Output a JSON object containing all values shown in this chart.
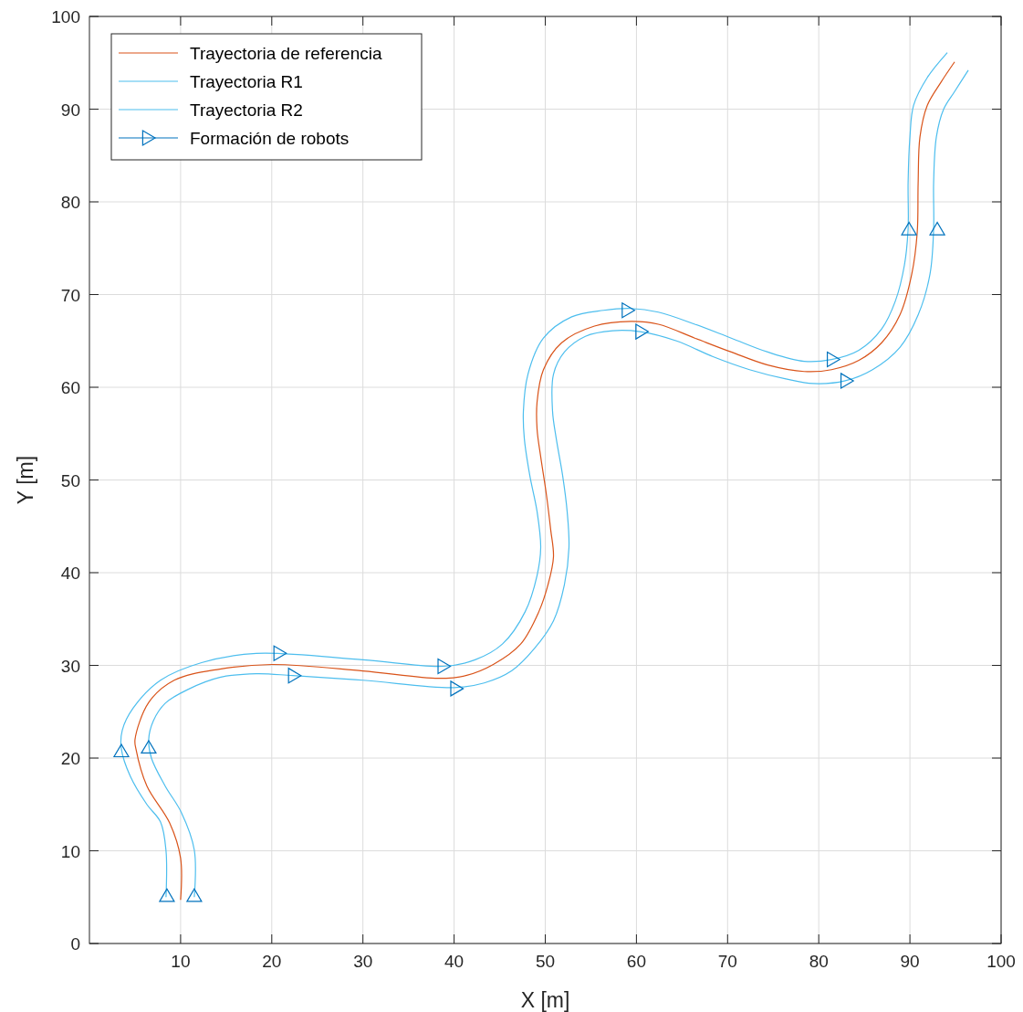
{
  "chart_data": {
    "type": "line",
    "xlabel": "X [m]",
    "ylabel": "Y [m]",
    "xlim": [
      0,
      100
    ],
    "ylim": [
      0,
      100
    ],
    "xticks": [
      10,
      20,
      30,
      40,
      50,
      60,
      70,
      80,
      90,
      100
    ],
    "yticks": [
      0,
      10,
      20,
      30,
      40,
      50,
      60,
      70,
      80,
      90,
      100
    ],
    "grid": true,
    "legend": "top left",
    "series": [
      {
        "name": "Trayectoria de referencia",
        "color": "#d95319",
        "x": [
          10,
          10,
          8.8,
          6.3,
          5.1,
          5,
          6.5,
          9.3,
          14.3,
          20,
          30,
          38.3,
          41.3,
          44.3,
          47.3,
          49.3,
          50.3,
          50.9,
          50.6,
          50.1,
          49.5,
          49.1,
          49.1,
          49.8,
          51.8,
          55.4,
          59.4,
          62.4,
          66.4,
          70.4,
          74.4,
          78.4,
          81.4,
          84.4,
          86.9,
          88.9,
          90.2,
          90.8,
          90.9,
          91.1,
          91.9,
          93.4,
          94.9
        ],
        "values": [
          4.7,
          9.2,
          13,
          17,
          21,
          22,
          26,
          28.4,
          29.6,
          30.1,
          29.4,
          28.6,
          28.9,
          30.1,
          32.3,
          35.8,
          38.7,
          41.7,
          44.6,
          48.6,
          52.5,
          55.5,
          58.4,
          61.9,
          64.8,
          66.6,
          67.1,
          66.8,
          65.3,
          63.8,
          62.4,
          61.7,
          61.9,
          62.9,
          64.8,
          67.8,
          72.2,
          76.7,
          82,
          87,
          90.4,
          92.9,
          95.1
        ]
      },
      {
        "name": "Trayectoria R1",
        "color": "#4dbeee",
        "x": [
          8.4,
          8.4,
          7.8,
          6.3,
          4.5,
          3.5,
          3.6,
          4.8,
          7.8,
          12.3,
          18.3,
          30,
          38.8,
          42.3,
          45.3,
          47.8,
          49.1,
          49.5,
          49.1,
          48.3,
          47.7,
          47.6,
          48.1,
          49.8,
          52.9,
          56.4,
          59.4,
          62.4,
          66.4,
          70.4,
          74.4,
          78.4,
          81.4,
          84.4,
          86.9,
          88.4,
          89.4,
          89.8,
          89.8,
          90,
          90.4,
          91.9,
          94.1
        ],
        "values": [
          5,
          10,
          13.1,
          15,
          18,
          21,
          23,
          25.4,
          28.4,
          30.3,
          31.3,
          30.6,
          29.9,
          30.6,
          32.3,
          35.8,
          39.7,
          42.7,
          46.6,
          50.5,
          54.5,
          57.4,
          61.4,
          65.3,
          67.6,
          68.3,
          68.5,
          68.1,
          66.8,
          65.3,
          63.8,
          62.8,
          63,
          64,
          66.3,
          69.3,
          73.2,
          77.1,
          82.1,
          87,
          90.4,
          93.4,
          96.1
        ]
      },
      {
        "name": "Trayectoria R2",
        "color": "#4dbeee",
        "x": [
          11.5,
          11.5,
          10.1,
          8.3,
          6.8,
          6.5,
          7,
          8.3,
          10.8,
          14.3,
          18.3,
          22.3,
          30,
          40,
          43.3,
          46.3,
          48.8,
          50.9,
          52.1,
          52.6,
          52.4,
          51.9,
          51.2,
          50.8,
          50.9,
          52.1,
          54.4,
          57.4,
          60.4,
          64.4,
          68.4,
          72.4,
          76.4,
          79.4,
          82.9,
          85.9,
          88.9,
          90.9,
          92.2,
          92.6,
          92.6,
          92.9,
          93.7,
          94.9,
          96.4
        ],
        "values": [
          5,
          10.1,
          14.1,
          17,
          20,
          22,
          24,
          25.9,
          27.4,
          28.7,
          29.1,
          28.9,
          28.4,
          27.6,
          28.1,
          29.4,
          31.8,
          34.8,
          38.7,
          42.7,
          46.6,
          50.5,
          54.5,
          57.4,
          61.4,
          63.8,
          65.5,
          66.1,
          66,
          65,
          63.3,
          61.9,
          60.9,
          60.4,
          60.7,
          61.9,
          64.3,
          67.8,
          72.2,
          77.1,
          82.1,
          87,
          90,
          91.9,
          94.2
        ]
      },
      {
        "name": "Formación de robots",
        "type": "scatter",
        "marker": "triangle",
        "color": "#0072bd",
        "x": [
          8.5,
          11.5,
          3.5,
          6.5,
          20.8,
          22.4,
          38.8,
          40.2,
          59,
          60.5,
          81.5,
          83,
          89.9,
          93
        ],
        "values": [
          5.1,
          5.1,
          20.7,
          21.1,
          31.3,
          28.9,
          29.9,
          27.5,
          68.3,
          66,
          63,
          60.7,
          77,
          77
        ]
      }
    ]
  }
}
